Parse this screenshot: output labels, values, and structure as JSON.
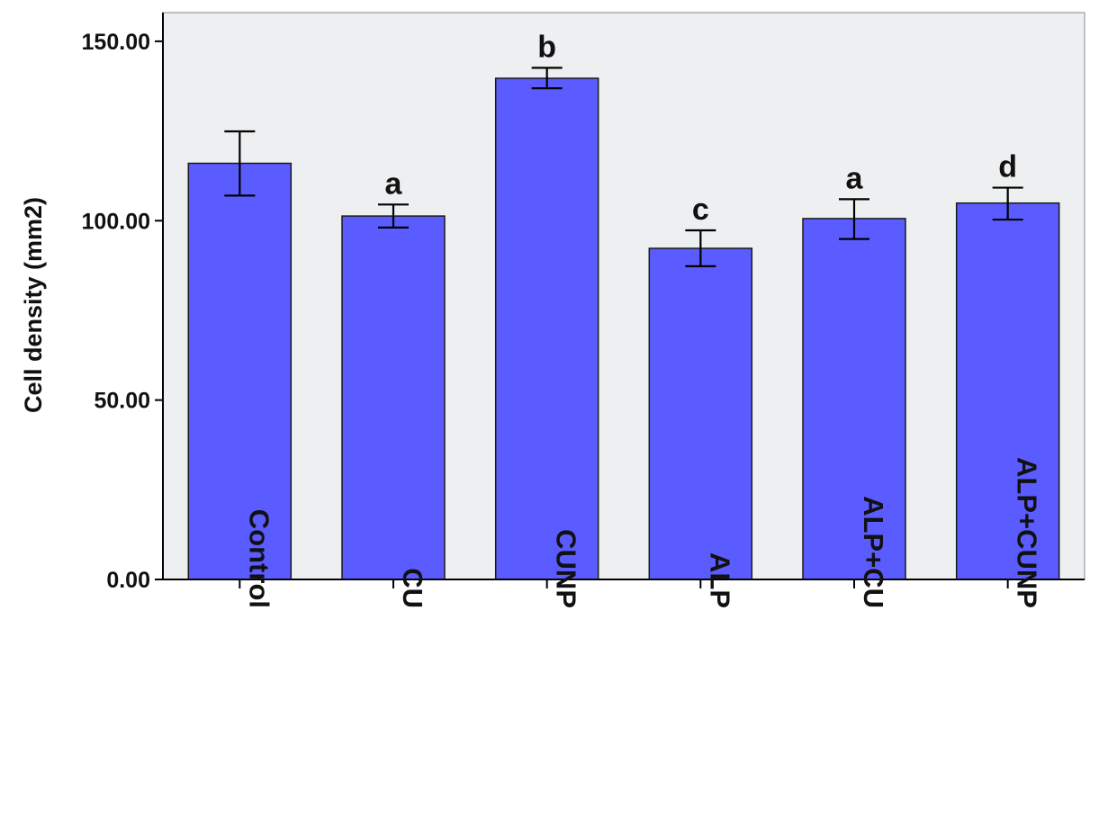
{
  "chart_data": {
    "type": "bar",
    "title": "",
    "xlabel": "",
    "ylabel": "Cell density (mm2)",
    "ylim": [
      0,
      158
    ],
    "yticks": [
      0,
      50,
      100,
      150
    ],
    "ytick_labels": [
      "0.00",
      "50.00",
      "100.00",
      "150.00"
    ],
    "categories": [
      "Control",
      "CU",
      "CUNP",
      "ALP",
      "ALP+CU",
      "ALP+CUNP"
    ],
    "values": [
      116.0,
      101.3,
      139.7,
      92.3,
      100.6,
      104.9
    ],
    "error_low": [
      107.0,
      98.1,
      136.9,
      87.3,
      94.9,
      100.3
    ],
    "error_high": [
      124.9,
      104.5,
      142.6,
      97.3,
      106.0,
      109.2
    ],
    "significance_labels": [
      "",
      "a",
      "b",
      "c",
      "a",
      "d"
    ],
    "colors": {
      "bar": "#5b5cff",
      "bar_edge": "#1a1a1a",
      "plot_background": "#eeeff1",
      "axis": "#000000"
    },
    "grid": false,
    "legend": "none"
  }
}
